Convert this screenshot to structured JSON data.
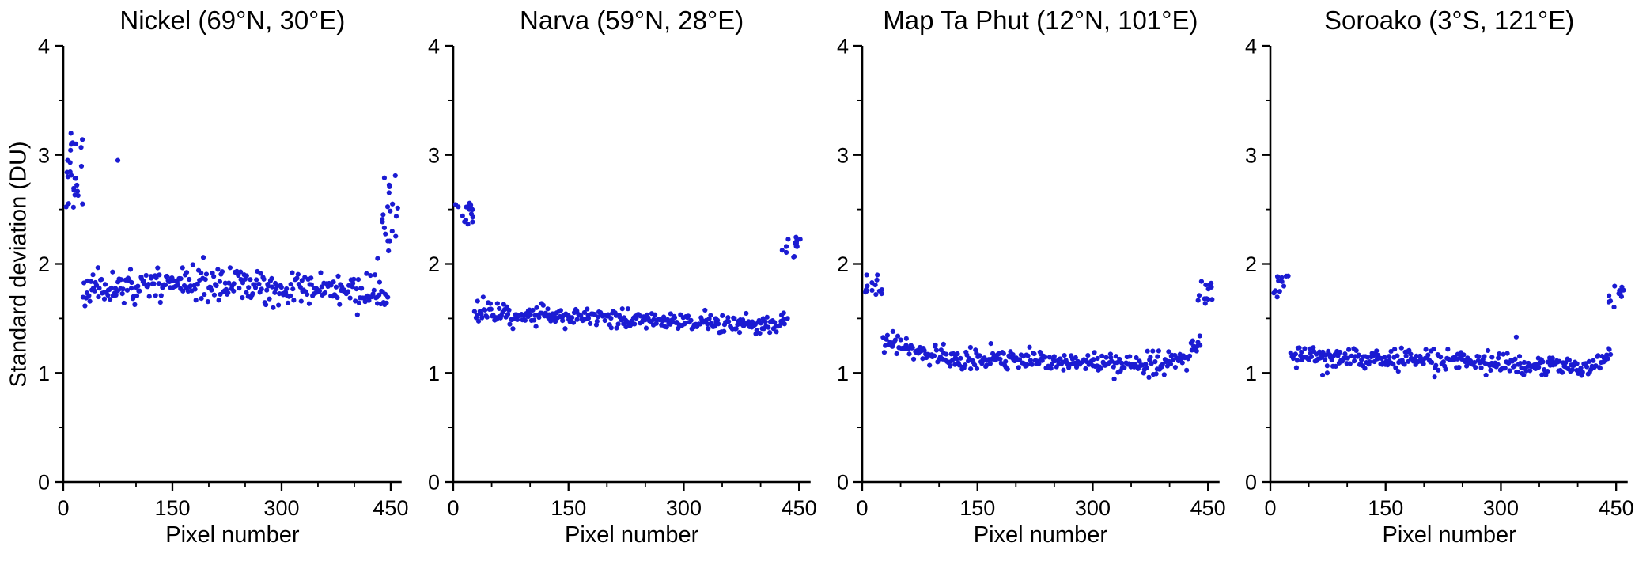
{
  "figure": {
    "background": "#ffffff",
    "text_color": "#000000",
    "axis_color": "#000000"
  },
  "chart_data": [
    {
      "type": "scatter",
      "title": "Nickel (69°N, 30°E)",
      "xlabel": "Pixel number",
      "ylabel": "Standard deviation (DU)",
      "xlim": [
        0,
        465
      ],
      "ylim": [
        0,
        4
      ],
      "xticks": [
        0,
        150,
        300,
        450
      ],
      "xticks_minor": [
        50,
        100,
        200,
        250,
        350,
        400
      ],
      "yticks": [
        0,
        1,
        2,
        3,
        4
      ],
      "yticks_minor": [
        0.5,
        1.5,
        2.5,
        3.5
      ],
      "marker_color": "#1b1bd2",
      "seed": 11,
      "point_model": {
        "baseline": {
          "x_start": 27,
          "x_end": 446,
          "step": 1.35,
          "anchors_x": [
            27,
            100,
            180,
            260,
            340,
            420,
            446
          ],
          "anchors_y": [
            1.78,
            1.8,
            1.83,
            1.8,
            1.77,
            1.72,
            1.7
          ],
          "noise": 0.075
        },
        "left_cluster": {
          "count": 24,
          "x_range": [
            2,
            28
          ],
          "y_range": [
            2.45,
            3.2
          ]
        },
        "right_cluster": {
          "count": 18,
          "x_range": [
            438,
            461
          ],
          "y_range": [
            2.2,
            2.85
          ]
        },
        "outliers": [
          [
            75,
            2.95
          ],
          [
            432,
            2.05
          ],
          [
            447,
            2.12
          ],
          [
            6,
            2.95
          ],
          [
            14,
            2.52
          ],
          [
            452,
            2.3
          ]
        ]
      }
    },
    {
      "type": "scatter",
      "title": "Narva (59°N, 28°E)",
      "xlabel": "Pixel number",
      "ylabel": "",
      "xlim": [
        0,
        465
      ],
      "ylim": [
        0,
        4
      ],
      "xticks": [
        0,
        150,
        300,
        450
      ],
      "xticks_minor": [
        50,
        100,
        200,
        250,
        350,
        400
      ],
      "yticks": [
        0,
        1,
        2,
        3,
        4
      ],
      "yticks_minor": [
        0.5,
        1.5,
        2.5,
        3.5
      ],
      "marker_color": "#1b1bd2",
      "seed": 22,
      "point_model": {
        "baseline": {
          "x_start": 28,
          "x_end": 432,
          "step": 1.35,
          "anchors_x": [
            28,
            100,
            200,
            300,
            380,
            432
          ],
          "anchors_y": [
            1.56,
            1.53,
            1.51,
            1.47,
            1.44,
            1.45
          ],
          "noise": 0.045
        },
        "left_cluster": {
          "count": 16,
          "x_range": [
            3,
            27
          ],
          "y_range": [
            2.33,
            2.57
          ]
        },
        "right_cluster": {
          "count": 15,
          "x_range": [
            427,
            452
          ],
          "y_range": [
            2.05,
            2.3
          ]
        },
        "outliers": [
          [
            430,
            1.55
          ],
          [
            435,
            1.5
          ]
        ]
      }
    },
    {
      "type": "scatter",
      "title": "Map Ta Phut (12°N, 101°E)",
      "xlabel": "Pixel number",
      "ylabel": "",
      "xlim": [
        0,
        465
      ],
      "ylim": [
        0,
        4
      ],
      "xticks": [
        0,
        150,
        300,
        450
      ],
      "xticks_minor": [
        50,
        100,
        200,
        250,
        350,
        400
      ],
      "yticks": [
        0,
        1,
        2,
        3,
        4
      ],
      "yticks_minor": [
        0.5,
        1.5,
        2.5,
        3.5
      ],
      "marker_color": "#1b1bd2",
      "seed": 33,
      "point_model": {
        "baseline": {
          "x_start": 27,
          "x_end": 441,
          "step": 1.35,
          "anchors_x": [
            27,
            60,
            120,
            220,
            320,
            370,
            420,
            441
          ],
          "anchors_y": [
            1.33,
            1.2,
            1.14,
            1.12,
            1.09,
            1.07,
            1.13,
            1.27
          ],
          "noise": 0.05
        },
        "left_cluster": {
          "count": 14,
          "x_range": [
            3,
            26
          ],
          "y_range": [
            1.72,
            1.9
          ]
        },
        "right_cluster": {
          "count": 13,
          "x_range": [
            437,
            458
          ],
          "y_range": [
            1.63,
            1.85
          ]
        },
        "outliers": [
          [
            40,
            1.38
          ]
        ]
      }
    },
    {
      "type": "scatter",
      "title": "Soroako (3°S, 121°E)",
      "xlabel": "Pixel number",
      "ylabel": "",
      "xlim": [
        0,
        465
      ],
      "ylim": [
        0,
        4
      ],
      "xticks": [
        0,
        150,
        300,
        450
      ],
      "xticks_minor": [
        50,
        100,
        200,
        250,
        350,
        400
      ],
      "yticks": [
        0,
        1,
        2,
        3,
        4
      ],
      "yticks_minor": [
        0.5,
        1.5,
        2.5,
        3.5
      ],
      "marker_color": "#1b1bd2",
      "seed": 44,
      "point_model": {
        "baseline": {
          "x_start": 27,
          "x_end": 443,
          "step": 1.35,
          "anchors_x": [
            27,
            100,
            200,
            300,
            370,
            420,
            443
          ],
          "anchors_y": [
            1.17,
            1.14,
            1.11,
            1.09,
            1.06,
            1.08,
            1.14
          ],
          "noise": 0.045
        },
        "left_cluster": {
          "count": 12,
          "x_range": [
            4,
            24
          ],
          "y_range": [
            1.68,
            1.9
          ]
        },
        "right_cluster": {
          "count": 12,
          "x_range": [
            440,
            460
          ],
          "y_range": [
            1.6,
            1.8
          ]
        },
        "outliers": [
          [
            68,
            0.98
          ],
          [
            74,
            1.0
          ],
          [
            320,
            1.33
          ]
        ]
      }
    }
  ]
}
